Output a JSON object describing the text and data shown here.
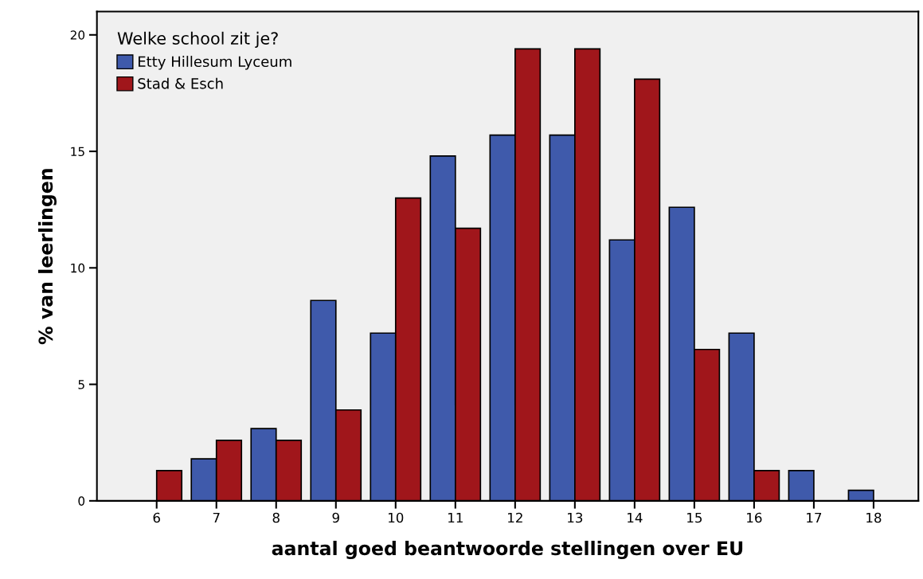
{
  "chart_data": {
    "type": "bar",
    "xlabel": "aantal goed beantwoorde stellingen over EU",
    "ylabel": "% van leerlingen",
    "legend_title": "Welke school zit je?",
    "categories": [
      "6",
      "7",
      "8",
      "9",
      "10",
      "11",
      "12",
      "13",
      "14",
      "15",
      "16",
      "17",
      "18"
    ],
    "series": [
      {
        "name": "Etty Hillesum Lyceum",
        "color": "#3f5aab",
        "values": [
          0,
          1.8,
          3.1,
          8.6,
          7.2,
          14.8,
          15.7,
          15.7,
          11.2,
          12.6,
          7.2,
          1.3,
          0.45
        ]
      },
      {
        "name": "Stad & Esch",
        "color": "#a0161b",
        "values": [
          1.3,
          2.6,
          2.6,
          3.9,
          13.0,
          11.7,
          19.4,
          19.4,
          18.1,
          6.5,
          1.3,
          0,
          0
        ]
      }
    ],
    "ylim": [
      0,
      21
    ],
    "yticks": [
      0,
      5,
      10,
      15,
      20
    ],
    "grid": false,
    "legend": "top left"
  }
}
